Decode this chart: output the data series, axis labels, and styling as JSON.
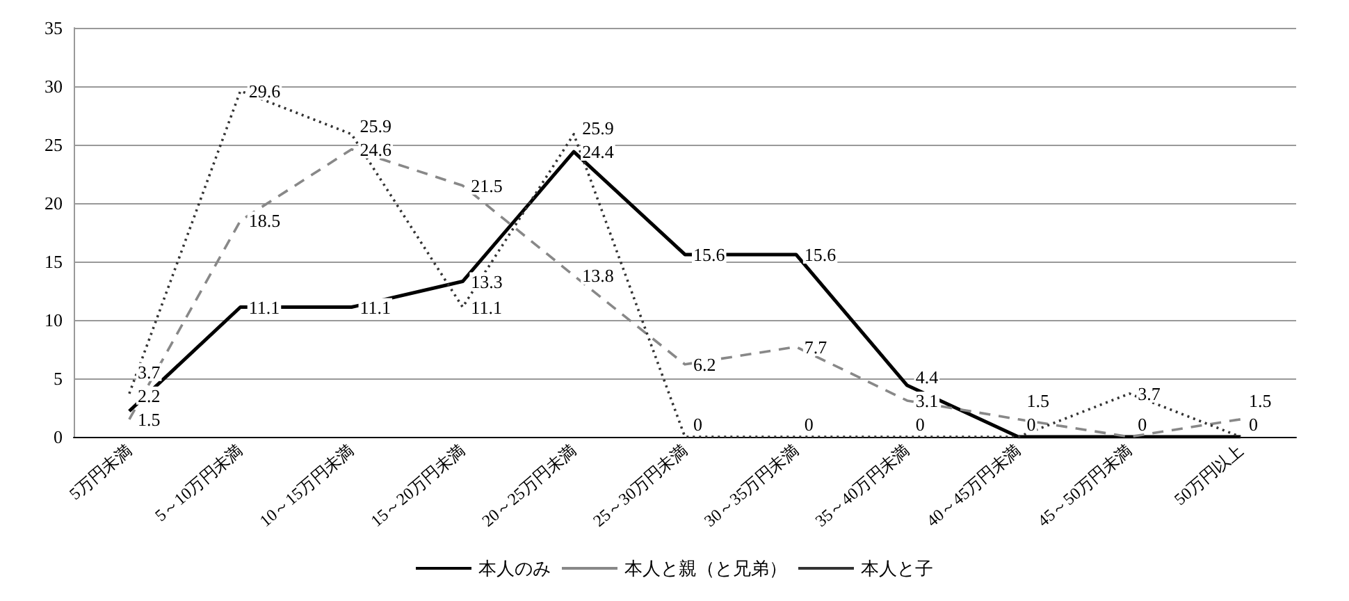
{
  "chart_data": {
    "type": "line",
    "categories": [
      "5万円未満",
      "5～10万円未満",
      "10～15万円未満",
      "15～20万円未満",
      "20～25万円未満",
      "25～30万円未満",
      "30～35万円未満",
      "35～40万円未満",
      "40～45万円未満",
      "45～50万円未満",
      "50万円以上"
    ],
    "series": [
      {
        "name": "本人のみ",
        "color": "#000000",
        "line_style": "solid",
        "values": [
          2.2,
          11.1,
          11.1,
          13.3,
          24.4,
          15.6,
          15.6,
          4.4,
          0,
          0,
          0
        ],
        "value_labels": [
          "2.2",
          "11.1",
          "11.1",
          "13.3",
          "24.4",
          "15.6",
          "15.6",
          "4.4",
          "0",
          "0",
          "0"
        ]
      },
      {
        "name": "本人と親（と兄弟）",
        "color": "#888888",
        "line_style": "dashed",
        "values": [
          1.5,
          18.5,
          24.6,
          21.5,
          13.8,
          6.2,
          7.7,
          3.1,
          1.5,
          0,
          1.5
        ],
        "value_labels": [
          "1.5",
          "18.5",
          "24.6",
          "21.5",
          "13.8",
          "6.2",
          "7.7",
          "3.1",
          "1.5",
          null,
          "1.5"
        ]
      },
      {
        "name": "本人と子",
        "color": "#333333",
        "line_style": "dotted",
        "values": [
          3.7,
          29.6,
          25.9,
          11.1,
          25.9,
          0,
          0,
          0,
          0,
          3.7,
          0
        ],
        "value_labels": [
          "3.7",
          "29.6",
          "25.9",
          "11.1",
          "25.9",
          "0",
          "0",
          "0",
          null,
          "3.7",
          null
        ]
      }
    ],
    "ylim": [
      0,
      35
    ],
    "yticks": [
      0,
      5,
      10,
      15,
      20,
      25,
      30,
      35
    ],
    "grid": "y",
    "legend": "bottom",
    "marker": "none"
  }
}
